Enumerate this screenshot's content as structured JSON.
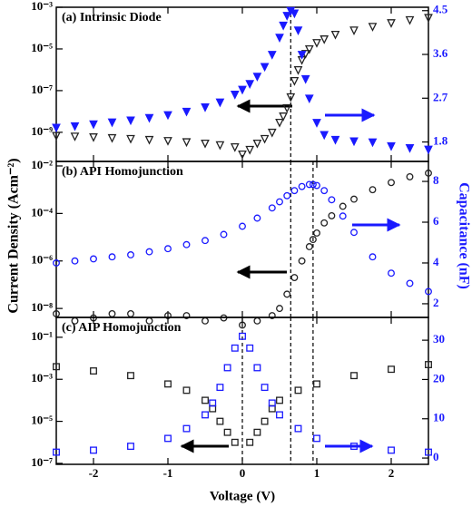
{
  "chart_data": [
    {
      "type": "scatter",
      "title": "(a) Intrinsic Diode",
      "x": [
        -2.5,
        -2.25,
        -2,
        -1.75,
        -1.5,
        -1.25,
        -1,
        -0.75,
        -0.5,
        -0.3,
        -0.1,
        0,
        0.1,
        0.2,
        0.3,
        0.4,
        0.5,
        0.55,
        0.6,
        0.65,
        0.7,
        0.75,
        0.8,
        0.85,
        0.9,
        1.0,
        1.1,
        1.25,
        1.5,
        1.75,
        2,
        2.25,
        2.5
      ],
      "xlim": [
        -2.5,
        2.5
      ],
      "xticks": [
        -2,
        -1,
        0,
        1,
        2
      ],
      "ylog": true,
      "ylim": [
        4e-11,
        0.001
      ],
      "yticks": [
        {
          "value": 0.001,
          "label": "10⁻³"
        },
        {
          "value": 1e-05,
          "label": "10⁻⁵"
        },
        {
          "value": 1e-07,
          "label": "10⁻⁷"
        },
        {
          "value": 1e-09,
          "label": "10⁻⁹"
        }
      ],
      "y2lim": [
        1.4,
        4.57
      ],
      "y2ticks": [
        1.8,
        2.7,
        3.6,
        4.5
      ],
      "vlines": [
        0.65
      ],
      "series": [
        {
          "color": "#222222",
          "marker": "triangle",
          "filled": false,
          "values": [
            7e-10,
            6.5e-10,
            6e-10,
            5.5e-10,
            5e-10,
            4.5e-10,
            4e-10,
            3.5e-10,
            3e-10,
            2.5e-10,
            2e-10,
            9e-11,
            1.5e-10,
            3e-10,
            5e-10,
            1e-09,
            3e-09,
            6e-09,
            1.5e-08,
            5e-08,
            3e-07,
            1e-06,
            3e-06,
            6e-06,
            1e-05,
            2e-05,
            3e-05,
            5e-05,
            8e-05,
            0.00012,
            0.00018,
            0.00025,
            0.00032
          ]
        },
        {
          "color": "#1a1aff",
          "marker": "triangle",
          "filled": true,
          "axis": "y2",
          "values": [
            2.1,
            2.13,
            2.17,
            2.21,
            2.25,
            2.3,
            2.36,
            2.43,
            2.52,
            2.62,
            2.78,
            2.88,
            3.0,
            3.15,
            3.35,
            3.6,
            3.95,
            4.2,
            4.4,
            4.5,
            4.45,
            4.1,
            3.6,
            3.1,
            2.7,
            2.2,
            1.95,
            1.85,
            1.82,
            1.8,
            1.72,
            1.68,
            1.65
          ]
        }
      ]
    },
    {
      "type": "scatter",
      "title": "(b) API Homojunction",
      "x": [
        -2.5,
        -2.25,
        -2,
        -1.75,
        -1.5,
        -1.25,
        -1,
        -0.75,
        -0.5,
        -0.25,
        0,
        0.2,
        0.4,
        0.5,
        0.6,
        0.7,
        0.8,
        0.9,
        0.95,
        1.0,
        1.1,
        1.2,
        1.35,
        1.5,
        1.75,
        2,
        2.25,
        2.5
      ],
      "xlim": [
        -2.5,
        2.5
      ],
      "xticks": [
        -2,
        -1,
        0,
        1,
        2
      ],
      "ylog": true,
      "ylim": [
        4.2e-09,
        0.0155
      ],
      "yticks": [
        {
          "value": 0.01,
          "label": "10⁻²"
        },
        {
          "value": 0.0001,
          "label": "10⁻⁴"
        },
        {
          "value": 1e-06,
          "label": "10⁻⁶"
        },
        {
          "value": 1e-08,
          "label": "10⁻⁸"
        }
      ],
      "y2lim": [
        1.33,
        8.98
      ],
      "y2ticks": [
        2,
        4,
        6,
        8
      ],
      "ylabel": "Current Density (Acm⁻²)",
      "y2label": "Capacitance (nF)",
      "vlines": [
        0.65,
        0.95
      ],
      "series": [
        {
          "color": "#222222",
          "marker": "circle",
          "filled": false,
          "values": [
            6e-09,
            3e-09,
            4e-09,
            6e-09,
            6e-09,
            3e-09,
            5e-09,
            5e-09,
            3e-09,
            4e-09,
            2e-09,
            3e-09,
            5e-09,
            1e-08,
            4e-08,
            2e-07,
            1e-06,
            4e-06,
            8e-06,
            1.5e-05,
            4e-05,
            8e-05,
            0.0002,
            0.0004,
            0.001,
            0.002,
            0.0035,
            0.005
          ]
        },
        {
          "color": "#1a1aff",
          "marker": "circle",
          "filled": false,
          "axis": "y2",
          "values": [
            4.0,
            4.1,
            4.2,
            4.3,
            4.4,
            4.55,
            4.7,
            4.9,
            5.1,
            5.4,
            5.8,
            6.2,
            6.7,
            7.0,
            7.3,
            7.55,
            7.75,
            7.85,
            7.85,
            7.8,
            7.55,
            7.1,
            6.3,
            5.5,
            4.3,
            3.5,
            3.0,
            2.6
          ]
        }
      ]
    },
    {
      "type": "scatter",
      "title": "(c) AIP Homojunction",
      "x": [
        -2.5,
        -2,
        -1.5,
        -1,
        -0.75,
        -0.5,
        -0.4,
        -0.3,
        -0.2,
        -0.1,
        0,
        0.1,
        0.2,
        0.3,
        0.4,
        0.5,
        0.75,
        1,
        1.5,
        2,
        2.5
      ],
      "xlim": [
        -2.5,
        2.5
      ],
      "xticks": [
        -2,
        -1,
        0,
        1,
        2
      ],
      "xlabel": "Voltage (V)",
      "ylog": true,
      "ylim": [
        9e-08,
        0.88
      ],
      "yticks": [
        {
          "value": 0.1,
          "label": "10⁻¹"
        },
        {
          "value": 0.001,
          "label": "10⁻³"
        },
        {
          "value": 1e-05,
          "label": "10⁻⁵"
        },
        {
          "value": 1e-07,
          "label": "10⁻⁷"
        }
      ],
      "y2lim": [
        -1.6,
        35.8
      ],
      "y2ticks": [
        0,
        10,
        20,
        30
      ],
      "vlines": [
        0,
        0.65,
        0.95
      ],
      "series": [
        {
          "color": "#222222",
          "marker": "square",
          "filled": false,
          "values": [
            0.004,
            0.0025,
            0.0015,
            0.0006,
            0.0003,
            0.0001,
            4e-05,
            1e-05,
            3e-06,
            1e-06,
            null,
            1e-06,
            3e-06,
            1e-05,
            4e-05,
            0.0001,
            0.0003,
            0.0006,
            0.0015,
            0.003,
            0.005
          ]
        },
        {
          "color": "#1a1aff",
          "marker": "square",
          "filled": false,
          "axis": "y2",
          "values": [
            1.5,
            2,
            3,
            5,
            7.5,
            11,
            14,
            18,
            23,
            28,
            31,
            28,
            23,
            18,
            14,
            11,
            7.5,
            5,
            3,
            2,
            1.5
          ]
        }
      ]
    }
  ]
}
